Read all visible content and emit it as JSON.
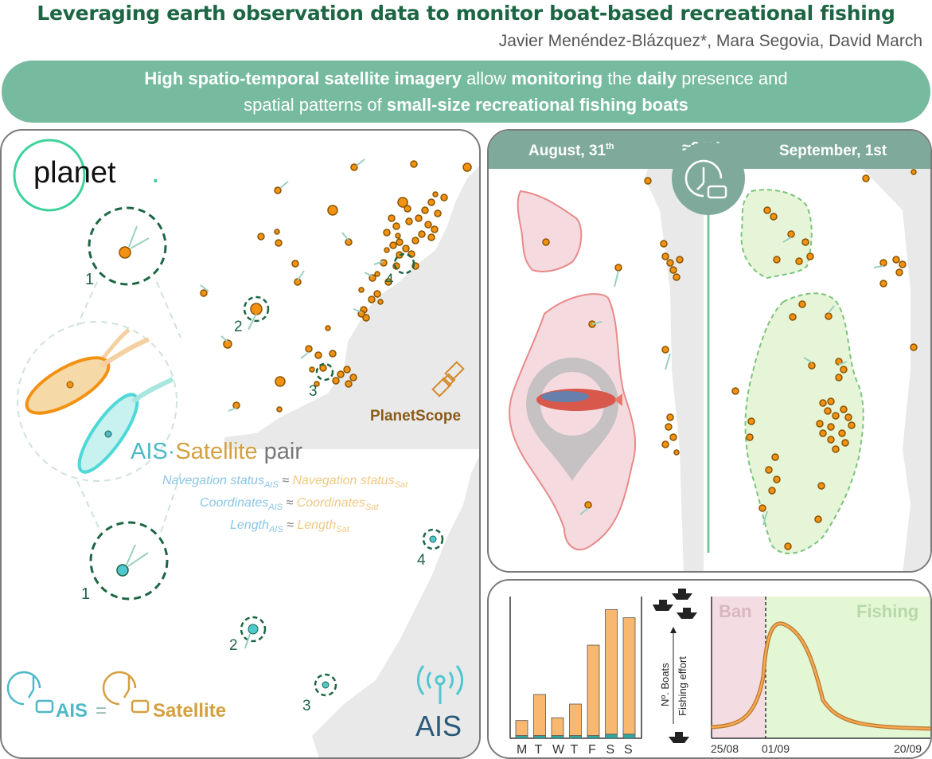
{
  "header": {
    "title": "Leveraging earth observation data to monitor boat-based recreational fishing",
    "authors": "Javier Menéndez-Blázquez*, Mara  Segovia, David March"
  },
  "banner": {
    "p1": "High spatio-temporal satellite imagery",
    "p2": " allow ",
    "p3": "monitoring",
    "p4": " the ",
    "p5": "daily",
    "p6": " presence and",
    "p7": "spatial patterns of ",
    "p8": "small-size recreational fishing boats"
  },
  "left_panel": {
    "planet_logo": "planet",
    "planet_dot": ".",
    "planetscope_label": "PlanetScope",
    "pair_ais": "AIS",
    "pair_dot": "·",
    "pair_sat": "Satellite",
    "pair_word": " pair",
    "rows": [
      {
        "ais": "Navegation status",
        "sat": "Navegation status"
      },
      {
        "ais": "Coordinates",
        "sat": "Coordinates"
      },
      {
        "ais": "Length",
        "sat": "Length"
      }
    ],
    "sub_ais": "AIS",
    "sub_sat": "Sat",
    "approx": " ≈ ",
    "equation_ais": "AIS",
    "equation_eq": "=",
    "equation_sat": "Satellite",
    "ais_logo": "AIS",
    "numbers": [
      "1",
      "2",
      "3",
      "4"
    ]
  },
  "right_panel": {
    "left_date": "August, 31",
    "left_date_sup": "th",
    "gap": "≈24H",
    "right_date": "September, 1st"
  },
  "bottom_panel": {
    "ylabel_top": "Nº. Boats",
    "ylabel_bottom": "Fishing effort",
    "ban_label": "Ban",
    "fishing_label": "Fishing",
    "x_ticks": [
      "25/08",
      "01/09",
      "20/09"
    ]
  },
  "chart_data": {
    "type": "bar",
    "categories": [
      "M",
      "T",
      "W",
      "T",
      "F",
      "S",
      "S"
    ],
    "series": [
      {
        "values": [
          2,
          2,
          2,
          2,
          2,
          3,
          3
        ]
      },
      {
        "values": [
          11,
          30,
          13,
          23,
          66,
          91,
          85
        ]
      }
    ],
    "colors": [
      "#30a8a0",
      "#f8b870"
    ]
  },
  "colors": {
    "dark_green": "#1d6644",
    "banner": "#76bba0",
    "orange": "#f39212",
    "ais_blue": "#4fb8c8",
    "sat_gold": "#d4a040"
  }
}
